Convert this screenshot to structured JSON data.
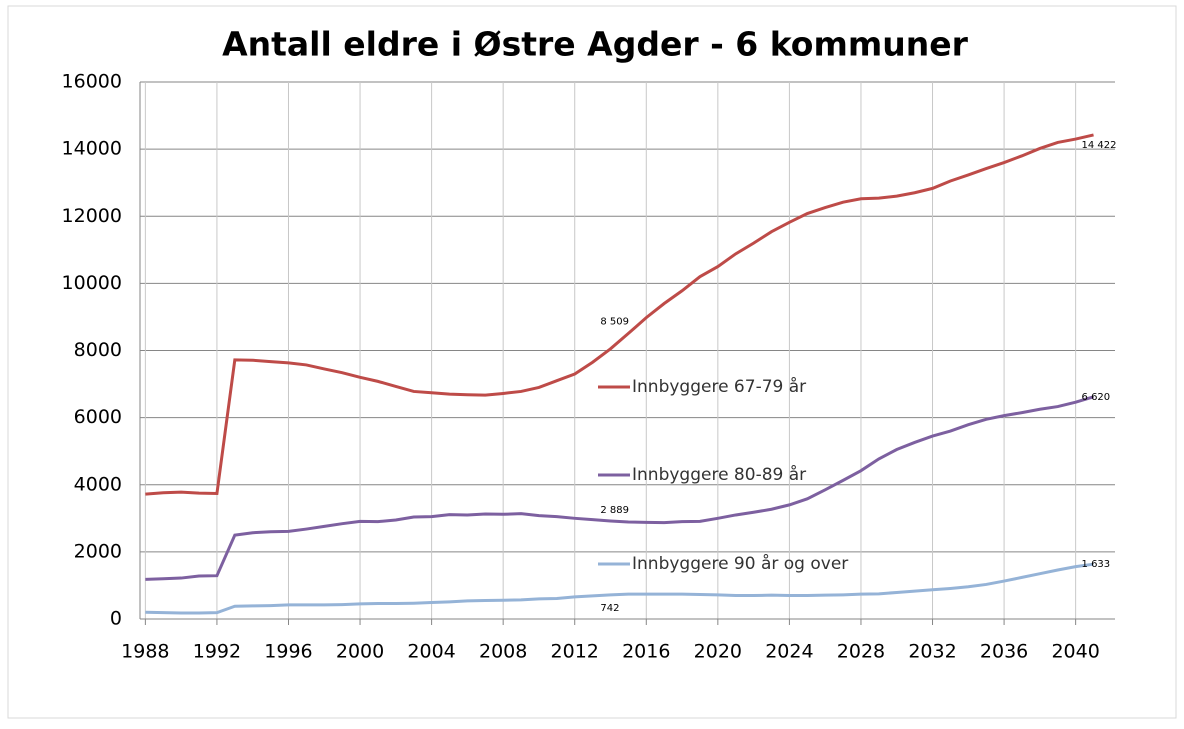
{
  "chart_data": {
    "type": "line",
    "title": "Antall eldre i Østre Agder - 6 kommuner",
    "x": [
      1988,
      1989,
      1990,
      1991,
      1992,
      1993,
      1994,
      1995,
      1996,
      1997,
      1998,
      1999,
      2000,
      2001,
      2002,
      2003,
      2004,
      2005,
      2006,
      2007,
      2008,
      2009,
      2010,
      2011,
      2012,
      2013,
      2014,
      2015,
      2016,
      2017,
      2018,
      2019,
      2020,
      2021,
      2022,
      2023,
      2024,
      2025,
      2026,
      2027,
      2028,
      2029,
      2030,
      2031,
      2032,
      2033,
      2034,
      2035,
      2036,
      2037,
      2038,
      2039,
      2040,
      2041
    ],
    "series": [
      {
        "name": "Innbyggere 67-79 år",
        "color": "#be4b48",
        "values": [
          3720,
          3760,
          3780,
          3750,
          3740,
          7720,
          7710,
          7670,
          7630,
          7570,
          7450,
          7340,
          7200,
          7080,
          6930,
          6780,
          6740,
          6700,
          6680,
          6670,
          6720,
          6780,
          6900,
          7100,
          7300,
          7650,
          8050,
          8509,
          8980,
          9400,
          9780,
          10200,
          10500,
          10880,
          11200,
          11540,
          11820,
          12080,
          12260,
          12420,
          12520,
          12540,
          12600,
          12700,
          12830,
          13050,
          13230,
          13420,
          13600,
          13800,
          14020,
          14200,
          14300,
          14422
        ],
        "value_labels": [
          null,
          null,
          null,
          null,
          null,
          null,
          null,
          null,
          null,
          null,
          null,
          null,
          null,
          null,
          null,
          null,
          null,
          null,
          null,
          null,
          null,
          null,
          null,
          null,
          null,
          null,
          null,
          "8 509",
          null,
          null,
          null,
          null,
          null,
          null,
          null,
          null,
          null,
          null,
          null,
          null,
          null,
          null,
          null,
          null,
          null,
          null,
          null,
          null,
          null,
          null,
          null,
          null,
          null,
          "14 422"
        ]
      },
      {
        "name": "Innbyggere 80-89 år",
        "color": "#7d60a0",
        "values": [
          1180,
          1200,
          1220,
          1280,
          1290,
          2500,
          2570,
          2600,
          2610,
          2680,
          2760,
          2840,
          2910,
          2900,
          2950,
          3040,
          3050,
          3110,
          3100,
          3130,
          3120,
          3140,
          3080,
          3050,
          3000,
          2960,
          2920,
          2889,
          2880,
          2870,
          2900,
          2910,
          3000,
          3100,
          3180,
          3270,
          3400,
          3580,
          3850,
          4130,
          4420,
          4770,
          5050,
          5260,
          5450,
          5600,
          5790,
          5950,
          6060,
          6150,
          6250,
          6330,
          6460,
          6620
        ],
        "value_labels": [
          null,
          null,
          null,
          null,
          null,
          null,
          null,
          null,
          null,
          null,
          null,
          null,
          null,
          null,
          null,
          null,
          null,
          null,
          null,
          null,
          null,
          null,
          null,
          null,
          null,
          null,
          null,
          "2 889",
          null,
          null,
          null,
          null,
          null,
          null,
          null,
          null,
          null,
          null,
          null,
          null,
          null,
          null,
          null,
          null,
          null,
          null,
          null,
          null,
          null,
          null,
          null,
          null,
          null,
          "6 620"
        ]
      },
      {
        "name": "Innbyggere 90 år og over",
        "color": "#95b3d7",
        "values": [
          200,
          190,
          180,
          180,
          190,
          380,
          390,
          400,
          420,
          420,
          420,
          430,
          450,
          460,
          460,
          470,
          490,
          510,
          540,
          550,
          560,
          570,
          600,
          610,
          660,
          690,
          720,
          742,
          740,
          740,
          740,
          730,
          720,
          700,
          700,
          710,
          700,
          700,
          710,
          720,
          740,
          750,
          790,
          830,
          870,
          910,
          960,
          1030,
          1130,
          1240,
          1350,
          1460,
          1560,
          1633
        ],
        "value_labels": [
          null,
          null,
          null,
          null,
          null,
          null,
          null,
          null,
          null,
          null,
          null,
          null,
          null,
          null,
          null,
          null,
          null,
          null,
          null,
          null,
          null,
          null,
          null,
          null,
          null,
          null,
          null,
          "742",
          null,
          null,
          null,
          null,
          null,
          null,
          null,
          null,
          null,
          null,
          null,
          null,
          null,
          null,
          null,
          null,
          null,
          null,
          null,
          null,
          null,
          null,
          null,
          null,
          null,
          "1 633"
        ]
      }
    ],
    "xlim": [
      1987.7,
      2042.2
    ],
    "xticks": [
      1988,
      1992,
      1996,
      2000,
      2004,
      2008,
      2012,
      2016,
      2020,
      2024,
      2028,
      2032,
      2036,
      2040
    ],
    "ylim": [
      0,
      16000
    ],
    "yticks": [
      0,
      2000,
      4000,
      6000,
      8000,
      10000,
      12000,
      14000,
      16000
    ],
    "grid": true
  }
}
